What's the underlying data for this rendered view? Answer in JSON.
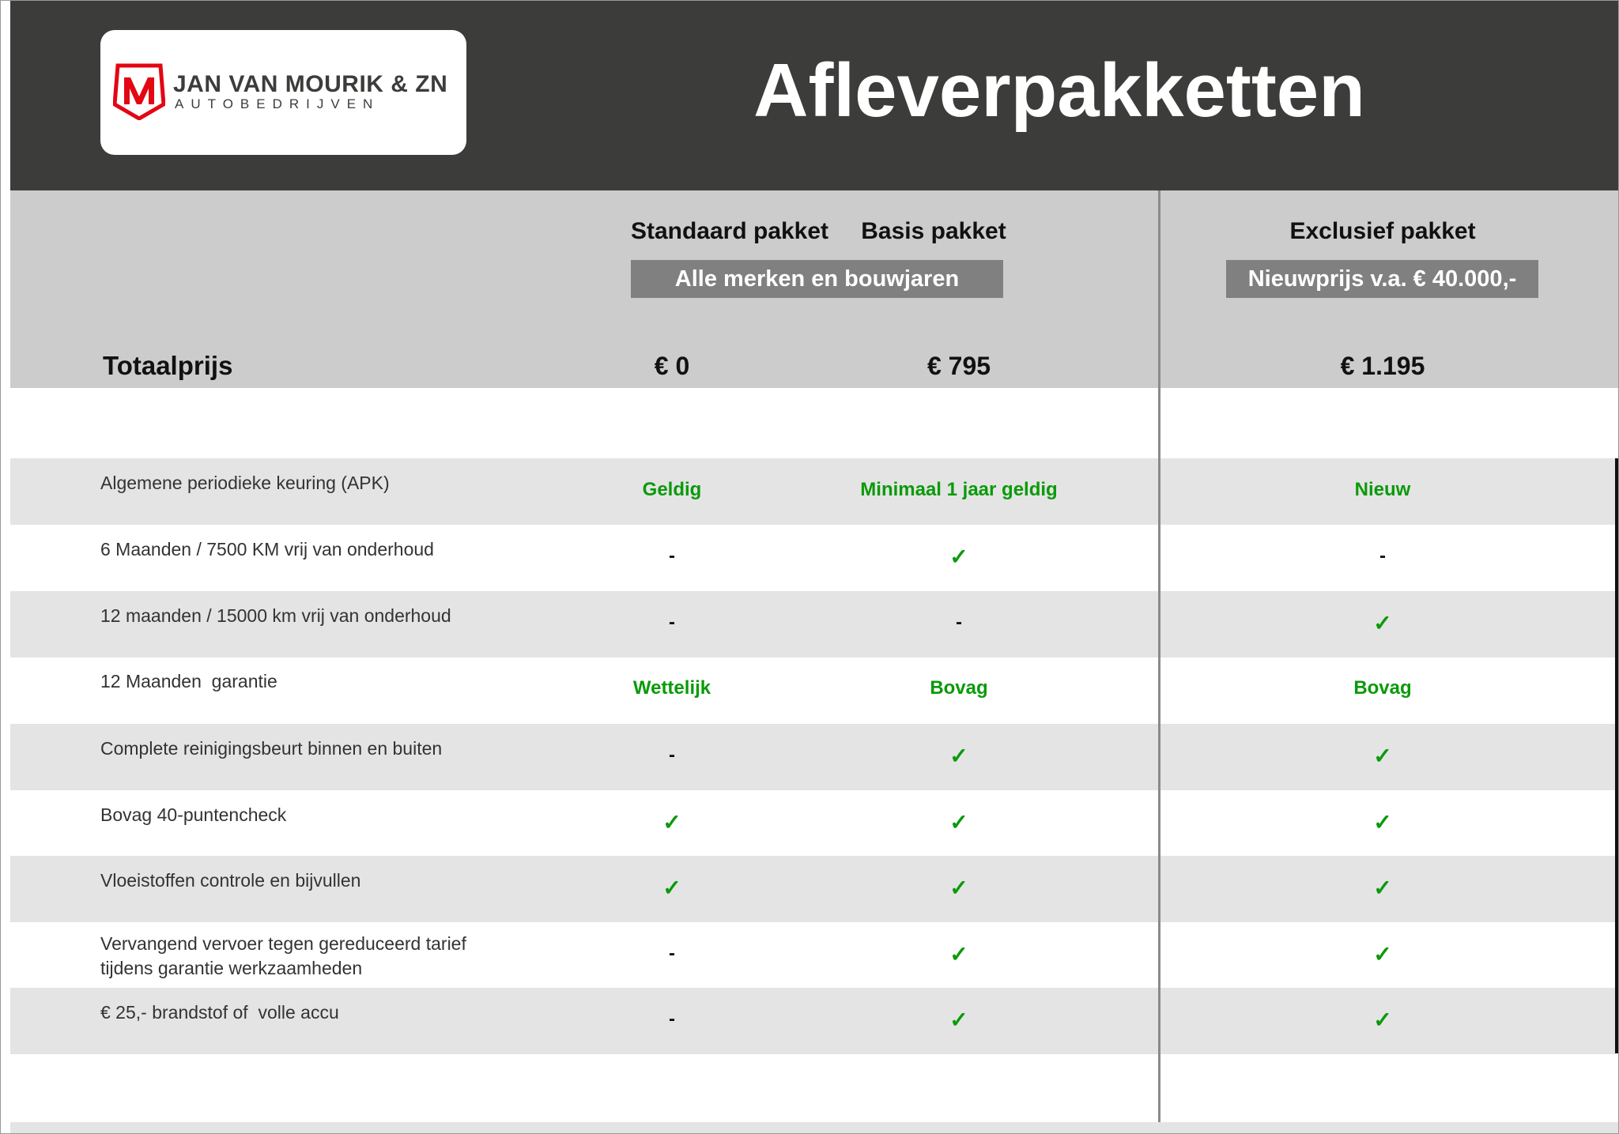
{
  "logo": {
    "name": "JAN VAN MOURIK & ZN",
    "sub": "AUTOBEDRIJVEN",
    "brand_color": "#e30613"
  },
  "title": "Afleverpakketten",
  "columns": [
    {
      "name": "Standaard pakket"
    },
    {
      "name": "Basis pakket"
    },
    {
      "name": "Exclusief pakket"
    }
  ],
  "badges": {
    "shared": "Alle merken en bouwjaren",
    "exclusief": "Nieuwprijs v.a. € 40.000,-"
  },
  "total": {
    "label": "Totaalprijs",
    "values": [
      "€ 0",
      "€ 795",
      "€ 1.195"
    ]
  },
  "colors": {
    "green": "#0a9a0a",
    "header": "#3c3c3b"
  },
  "rows": [
    {
      "label": "Algemene periodieke keuring (APK)",
      "values": [
        "Geldig",
        "Minimaal 1 jaar geldig",
        "Nieuw"
      ]
    },
    {
      "label": "6 Maanden / 7500 KM vrij van onderhoud",
      "values": [
        "-",
        "✓",
        "-"
      ]
    },
    {
      "label": "12 maanden / 15000 km vrij van onderhoud",
      "values": [
        "-",
        "-",
        "✓"
      ]
    },
    {
      "label": "12 Maanden  garantie",
      "values": [
        "Wettelijk",
        "Bovag",
        "Bovag"
      ]
    },
    {
      "label": "Complete reinigingsbeurt binnen en buiten",
      "values": [
        "-",
        "✓",
        "✓"
      ]
    },
    {
      "label": "Bovag 40-puntencheck",
      "values": [
        "✓",
        "✓",
        "✓"
      ]
    },
    {
      "label": "Vloeistoffen controle en bijvullen",
      "values": [
        "✓",
        "✓",
        "✓"
      ]
    },
    {
      "label": "Vervangend vervoer tegen gereduceerd tarief\ntijdens garantie werkzaamheden",
      "values": [
        "-",
        "✓",
        "✓"
      ]
    },
    {
      "label": "€ 25,- brandstof of  volle accu",
      "values": [
        "-",
        "✓",
        "✓"
      ]
    }
  ]
}
